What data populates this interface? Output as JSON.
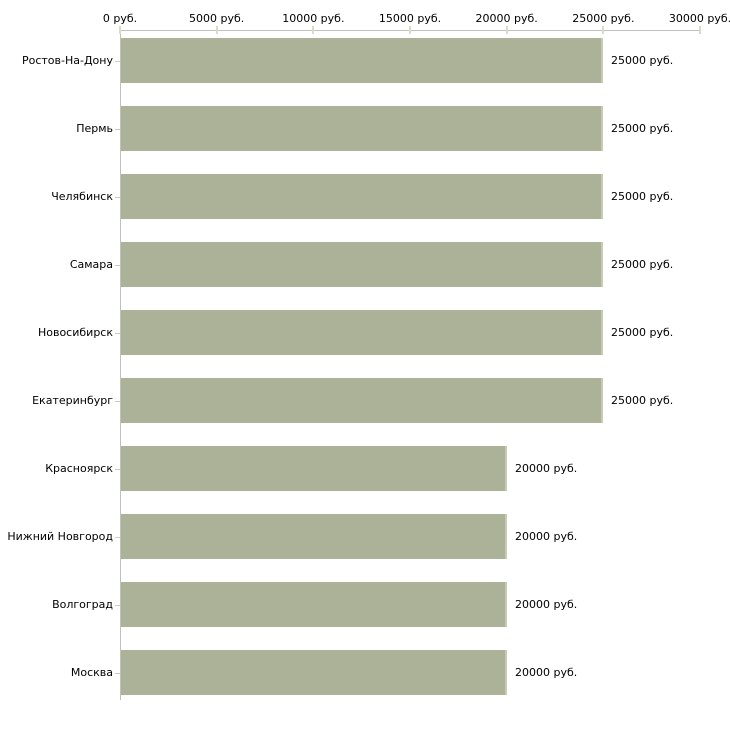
{
  "chart_data": {
    "type": "bar",
    "orientation": "horizontal",
    "title": "",
    "xlabel": "",
    "ylabel": "",
    "unit_suffix": " руб.",
    "xlim": [
      0,
      30000
    ],
    "grid": false,
    "legend": null,
    "x_ticks": [
      {
        "value": 0,
        "label": "0 руб."
      },
      {
        "value": 5000,
        "label": "5000 руб."
      },
      {
        "value": 10000,
        "label": "10000 руб."
      },
      {
        "value": 15000,
        "label": "15000 руб."
      },
      {
        "value": 20000,
        "label": "20000 руб."
      },
      {
        "value": 25000,
        "label": "25000 руб."
      },
      {
        "value": 30000,
        "label": "30000 руб."
      }
    ],
    "categories": [
      "Ростов-На-Дону",
      "Пермь",
      "Челябинск",
      "Самара",
      "Новосибирск",
      "Екатеринбург",
      "Красноярск",
      "Нижний Новгород",
      "Волгоград",
      "Москва"
    ],
    "values": [
      25000,
      25000,
      25000,
      25000,
      25000,
      25000,
      20000,
      20000,
      20000,
      20000
    ],
    "value_labels": [
      "25000 руб.",
      "25000 руб.",
      "25000 руб.",
      "25000 руб.",
      "25000 руб.",
      "25000 руб.",
      "20000 руб.",
      "20000 руб.",
      "20000 руб.",
      "20000 руб."
    ],
    "colors": {
      "bar_fill": "#abb298",
      "bar_edge": "#c6cbb2",
      "axis_line": "#c0c0c0",
      "tick_mark": "#d9dcc3",
      "category_tick": "#c9cdbb",
      "text": "#000000",
      "background": "#ffffff"
    }
  }
}
